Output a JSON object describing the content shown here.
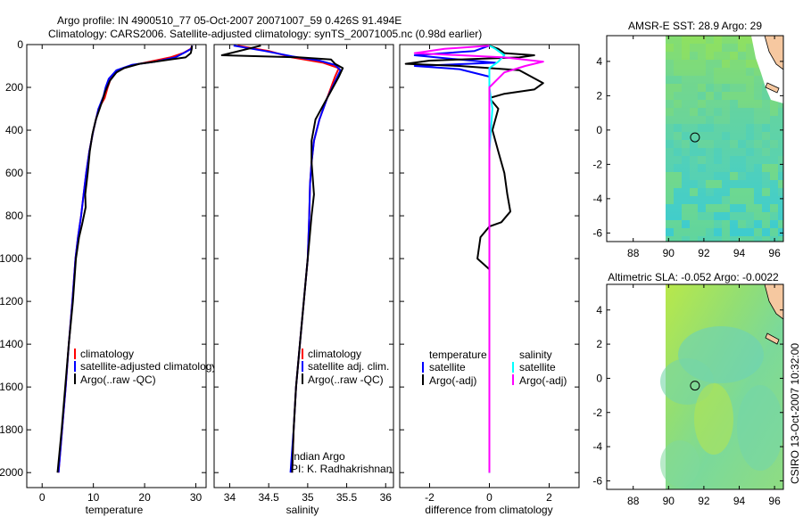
{
  "header": {
    "line1": "Argo profile: IN 4900510_77 05-Oct-2007 20071007_59 0.426S 91.494E",
    "line2": "Climatology: CARS2006. Satellite-adjusted climatology: synTS_20071005.nc (0.98d earlier)"
  },
  "credit": {
    "side": "CSIRO 13-Oct-2007 10:32:00",
    "argo_program": "Indian Argo",
    "pi": "PI: K. Radhakrishnan"
  },
  "colors": {
    "climatology": "#ff0000",
    "satellite": "#0000ff",
    "argo": "#000000",
    "salinity_satellite": "#00ffff",
    "salinity_argo": "#ff00ff"
  },
  "chart_data": [
    {
      "type": "line",
      "id": "temperature",
      "xlabel": "temperature",
      "xlim": [
        -3,
        32
      ],
      "ylim": [
        0,
        2070
      ],
      "y_inverted": true,
      "xticks": [
        0,
        10,
        20,
        30
      ],
      "yticks": [
        0,
        200,
        400,
        600,
        800,
        1000,
        1200,
        1400,
        1600,
        1800,
        2000
      ],
      "legend": [
        "climatology",
        "satellite-adjusted climatology",
        "Argo(..raw -QC)"
      ],
      "series": [
        {
          "name": "climatology",
          "color": "#ff0000",
          "points": [
            [
              29.3,
              5
            ],
            [
              29,
              20
            ],
            [
              27.5,
              40
            ],
            [
              25,
              60
            ],
            [
              21,
              80
            ],
            [
              17,
              100
            ],
            [
              15,
              120
            ],
            [
              13.5,
              150
            ],
            [
              12.8,
              200
            ],
            [
              12.2,
              250
            ],
            [
              11,
              300
            ],
            [
              10,
              400
            ],
            [
              9.2,
              500
            ],
            [
              8.6,
              600
            ],
            [
              8.1,
              700
            ],
            [
              7.6,
              800
            ],
            [
              7,
              900
            ],
            [
              6.5,
              1000
            ],
            [
              5.9,
              1200
            ],
            [
              5.2,
              1400
            ],
            [
              4.6,
              1600
            ],
            [
              3.9,
              1800
            ],
            [
              3.2,
              2000
            ]
          ]
        },
        {
          "name": "satellite-adjusted climatology",
          "color": "#0000ff",
          "points": [
            [
              29.3,
              5
            ],
            [
              29.1,
              20
            ],
            [
              28,
              35
            ],
            [
              26,
              60
            ],
            [
              22,
              80
            ],
            [
              17.5,
              95
            ],
            [
              14.5,
              120
            ],
            [
              13,
              160
            ],
            [
              12.4,
              200
            ],
            [
              12,
              240
            ],
            [
              11,
              300
            ],
            [
              10,
              400
            ],
            [
              9.2,
              500
            ],
            [
              8.6,
              600
            ],
            [
              8.1,
              700
            ],
            [
              7.6,
              800
            ],
            [
              7,
              900
            ],
            [
              6.5,
              1000
            ],
            [
              5.9,
              1200
            ],
            [
              5.2,
              1400
            ],
            [
              4.6,
              1600
            ],
            [
              3.9,
              1800
            ],
            [
              3.2,
              2000
            ]
          ]
        },
        {
          "name": "Argo(..raw -QC)",
          "color": "#000000",
          "points": [
            [
              29.2,
              5
            ],
            [
              29.2,
              20
            ],
            [
              29,
              40
            ],
            [
              28,
              60
            ],
            [
              25,
              70
            ],
            [
              22,
              80
            ],
            [
              19,
              90
            ],
            [
              16,
              110
            ],
            [
              14.5,
              130
            ],
            [
              13.2,
              170
            ],
            [
              12.3,
              220
            ],
            [
              11.5,
              280
            ],
            [
              10.5,
              350
            ],
            [
              9.8,
              420
            ],
            [
              9.3,
              500
            ],
            [
              8.9,
              600
            ],
            [
              8.4,
              700
            ],
            [
              8.5,
              760
            ],
            [
              7.8,
              840
            ],
            [
              7.2,
              900
            ],
            [
              6.6,
              1000
            ],
            [
              6,
              1200
            ],
            [
              5.2,
              1400
            ],
            [
              4.5,
              1600
            ],
            [
              3.8,
              1800
            ],
            [
              3,
              2000
            ]
          ]
        }
      ]
    },
    {
      "type": "line",
      "id": "salinity",
      "xlabel": "salinity",
      "xlim": [
        33.8,
        36.1
      ],
      "ylim": [
        0,
        2070
      ],
      "y_inverted": true,
      "xticks": [
        34,
        34.5,
        35,
        35.5,
        36
      ],
      "legend": [
        "climatology",
        "satellite adj. clim.",
        "Argo(..raw -QC)"
      ],
      "series": [
        {
          "name": "climatology",
          "color": "#ff0000",
          "points": [
            [
              34.1,
              5
            ],
            [
              34.5,
              30
            ],
            [
              34.8,
              60
            ],
            [
              35.2,
              85
            ],
            [
              35.4,
              110
            ],
            [
              35.35,
              150
            ],
            [
              35.25,
              250
            ],
            [
              35.15,
              350
            ],
            [
              35.08,
              450
            ],
            [
              35.05,
              550
            ],
            [
              35.03,
              650
            ],
            [
              35.02,
              800
            ],
            [
              35,
              1000
            ],
            [
              34.95,
              1200
            ],
            [
              34.9,
              1400
            ],
            [
              34.85,
              1600
            ],
            [
              34.82,
              1800
            ],
            [
              34.8,
              2000
            ]
          ]
        },
        {
          "name": "satellite adj. clim.",
          "color": "#0000ff",
          "points": [
            [
              34.05,
              5
            ],
            [
              34.45,
              30
            ],
            [
              34.8,
              55
            ],
            [
              35.15,
              75
            ],
            [
              35.35,
              95
            ],
            [
              35.42,
              120
            ],
            [
              35.38,
              150
            ],
            [
              35.25,
              250
            ],
            [
              35.15,
              350
            ],
            [
              35.08,
              450
            ],
            [
              35.05,
              550
            ],
            [
              35.03,
              650
            ],
            [
              35.02,
              800
            ],
            [
              35,
              1000
            ],
            [
              34.95,
              1200
            ],
            [
              34.9,
              1400
            ],
            [
              34.85,
              1600
            ],
            [
              34.82,
              1800
            ],
            [
              34.78,
              2000
            ]
          ]
        },
        {
          "name": "Argo(..raw -QC)",
          "color": "#000000",
          "points": [
            [
              34.4,
              5
            ],
            [
              33.9,
              50
            ],
            [
              34.9,
              60
            ],
            [
              35.3,
              70
            ],
            [
              35.35,
              90
            ],
            [
              35.45,
              110
            ],
            [
              35.4,
              150
            ],
            [
              35.25,
              250
            ],
            [
              35.1,
              350
            ],
            [
              35.05,
              450
            ],
            [
              35.05,
              550
            ],
            [
              35.08,
              700
            ],
            [
              35.05,
              800
            ],
            [
              35,
              1000
            ],
            [
              34.95,
              1200
            ],
            [
              34.9,
              1400
            ],
            [
              34.85,
              1600
            ],
            [
              34.82,
              1800
            ],
            [
              34.8,
              2000
            ]
          ]
        }
      ]
    },
    {
      "type": "line",
      "id": "difference",
      "xlabel": "difference from climatology",
      "xlim": [
        -3,
        3
      ],
      "ylim": [
        0,
        2070
      ],
      "y_inverted": true,
      "xticks": [
        -2,
        0,
        2
      ],
      "legend_groups": [
        {
          "title": "temperature",
          "items": [
            "satellite",
            "Argo(-adj)"
          ]
        },
        {
          "title": "salinity",
          "items": [
            "satellite",
            "Argo(-adj)"
          ]
        }
      ],
      "series": [
        {
          "name": "temperature satellite",
          "color": "#0000ff",
          "points": [
            [
              0,
              5
            ],
            [
              -0.5,
              30
            ],
            [
              -2.5,
              50
            ],
            [
              -1,
              70
            ],
            [
              0.2,
              85
            ],
            [
              -2.5,
              100
            ],
            [
              -1,
              115
            ],
            [
              0,
              150
            ],
            [
              0,
              200
            ],
            [
              0,
              250
            ],
            [
              0,
              400
            ],
            [
              0,
              1000
            ],
            [
              0,
              2000
            ]
          ]
        },
        {
          "name": "temperature Argo(-adj)",
          "color": "#000000",
          "points": [
            [
              0,
              5
            ],
            [
              0.3,
              20
            ],
            [
              0.5,
              40
            ],
            [
              1.5,
              50
            ],
            [
              1,
              60
            ],
            [
              -2,
              75
            ],
            [
              -2.8,
              90
            ],
            [
              -1,
              100
            ],
            [
              1,
              120
            ],
            [
              1.8,
              180
            ],
            [
              1.5,
              210
            ],
            [
              0.5,
              230
            ],
            [
              0,
              250
            ],
            [
              0.3,
              300
            ],
            [
              0.1,
              400
            ],
            [
              0.3,
              500
            ],
            [
              0.5,
              600
            ],
            [
              0.6,
              700
            ],
            [
              0.7,
              780
            ],
            [
              0.4,
              830
            ],
            [
              0,
              850
            ],
            [
              -0.3,
              900
            ],
            [
              -0.4,
              1000
            ],
            [
              0,
              1050
            ],
            [
              0,
              1200
            ],
            [
              0,
              1500
            ],
            [
              0,
              2000
            ]
          ]
        },
        {
          "name": "salinity satellite",
          "color": "#00ffff",
          "points": [
            [
              0,
              5
            ],
            [
              0.2,
              20
            ],
            [
              0.5,
              50
            ],
            [
              0.3,
              80
            ],
            [
              0,
              110
            ],
            [
              0,
              150
            ],
            [
              0,
              200
            ],
            [
              0.1,
              300
            ],
            [
              0,
              500
            ],
            [
              0,
              1000
            ],
            [
              0,
              1500
            ],
            [
              0,
              2000
            ]
          ]
        },
        {
          "name": "salinity Argo(-adj)",
          "color": "#ff00ff",
          "points": [
            [
              0,
              5
            ],
            [
              -1.5,
              20
            ],
            [
              -2.5,
              40
            ],
            [
              0.5,
              60
            ],
            [
              1.8,
              80
            ],
            [
              1.2,
              100
            ],
            [
              0.5,
              130
            ],
            [
              0,
              200
            ],
            [
              0,
              500
            ],
            [
              0,
              1000
            ],
            [
              0,
              2000
            ]
          ]
        }
      ]
    },
    {
      "type": "heatmap",
      "id": "sst",
      "title": "AMSR-E SST: 28.9 Argo: 29",
      "xlim": [
        86.5,
        96.5
      ],
      "ylim": [
        -6.5,
        5.5
      ],
      "xticks": [
        88,
        90,
        92,
        94,
        96
      ],
      "yticks": [
        -6,
        -4,
        -2,
        0,
        2,
        4
      ],
      "argo_position": [
        91.494,
        -0.426
      ]
    },
    {
      "type": "heatmap",
      "id": "sla",
      "title": "Altimetric SLA: -0.052 Argo: -0.0022",
      "xlim": [
        86.5,
        96.5
      ],
      "ylim": [
        -6.5,
        5.5
      ],
      "xticks": [
        88,
        90,
        92,
        94,
        96
      ],
      "yticks": [
        -6,
        -4,
        -2,
        0,
        2,
        4
      ],
      "argo_position": [
        91.494,
        -0.426
      ]
    }
  ]
}
